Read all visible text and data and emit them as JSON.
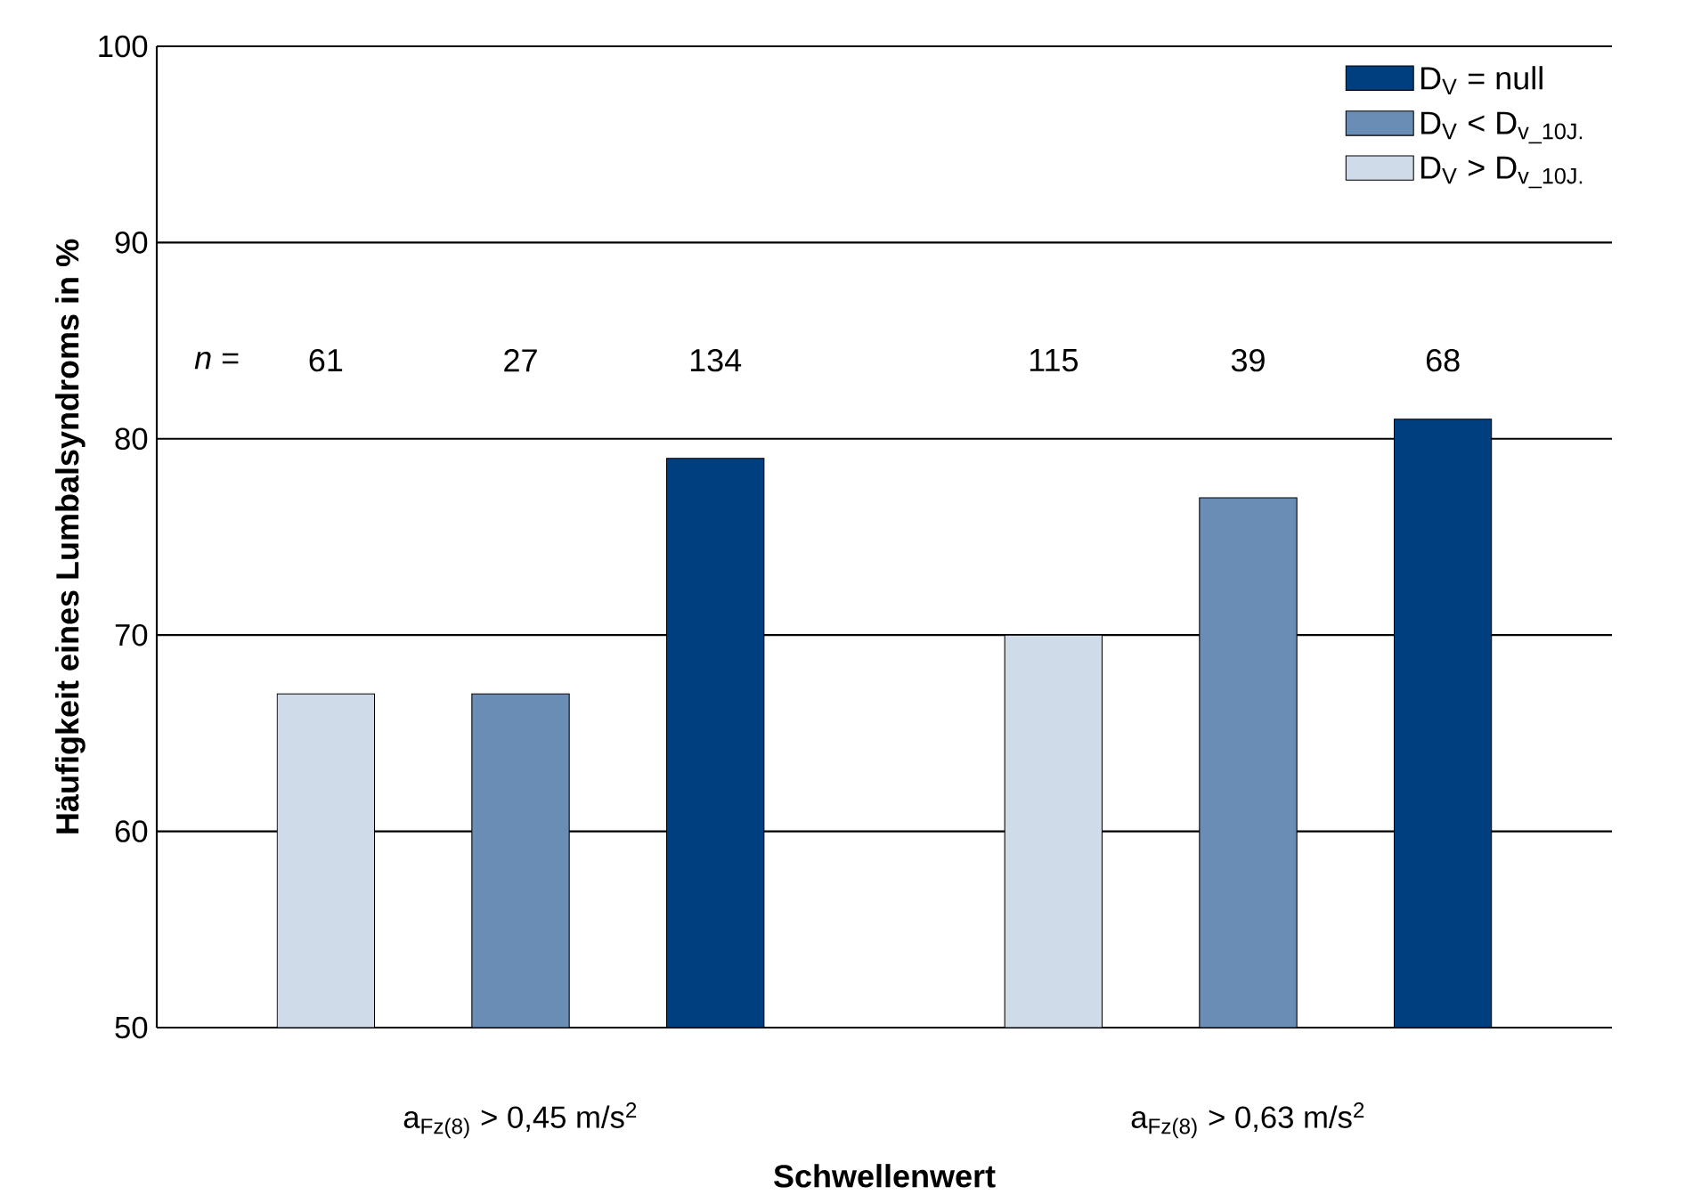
{
  "chart_data": {
    "type": "bar",
    "xlabel": "Schwellenwert",
    "ylabel": "Häufigkeit eines Lumbalsyndroms in %",
    "categories": [
      "a$_{Fz(8)}$ > 0,45 m/s$^{2}$",
      "a$_{Fz(8)}$ > 0,63 m/s$^{2}$"
    ],
    "series": [
      {
        "name": "D$_{V}$ > D$_{v_10J.}$",
        "color": "#cfdbe8",
        "values": [
          67,
          70
        ]
      },
      {
        "name": "D$_{V}$ < D$_{v_10J.}$",
        "color": "#6a8db5",
        "values": [
          67,
          77
        ]
      },
      {
        "name": "D$_{V}$ = null",
        "color": "#003f7f",
        "values": [
          79,
          81
        ]
      }
    ],
    "annotations": [
      "*n* =",
      "61",
      "27",
      "134",
      "115",
      "39",
      "68"
    ],
    "ylim": [
      50,
      100
    ],
    "yticks": [
      50,
      60,
      70,
      80,
      90,
      100
    ],
    "grid": "y",
    "legend": "top right"
  }
}
